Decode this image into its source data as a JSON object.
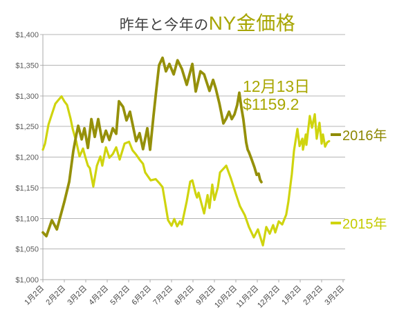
{
  "title": {
    "prefix": "昨年と今年の",
    "main": "NY金価格"
  },
  "colors": {
    "accent_title": "#a7a500",
    "annotation": "#a9a702",
    "series_2016": "#95900a",
    "series_2015": "#cfd40e",
    "grid": "#b5b5b5",
    "axis": "#a8a8a8",
    "y_tick_label": "#595959",
    "x_tick_label": "#454545",
    "title_gray": "#3f3f3f"
  },
  "chart_data": {
    "type": "line",
    "title": "昨年と今年のNY金価格",
    "legend_position": "right",
    "grid": "horizontal",
    "annotation": {
      "date": "12月13日",
      "value": "$1159.2"
    },
    "x_axis": {
      "tick_labels": [
        "1月2日",
        "2月2日",
        "3月2日",
        "4月2日",
        "5月2日",
        "6月2日",
        "7月2日",
        "8月2日",
        "9月2日",
        "10月2日",
        "11月2日",
        "12月2日",
        "1月2日",
        "2月2日",
        "3月2日"
      ],
      "label_rotation_deg": -45
    },
    "y_axis": {
      "min": 1000,
      "max": 1400,
      "tick_interval": 50,
      "tick_labels": [
        "$1,000",
        "$1,050",
        "$1,100",
        "$1,150",
        "$1,200",
        "$1,250",
        "$1,300",
        "$1,350",
        "$1,400"
      ]
    },
    "series": [
      {
        "name": "2016年",
        "color": "#95900a",
        "points": [
          [
            0,
            1077
          ],
          [
            0.16,
            1071
          ],
          [
            0.42,
            1097
          ],
          [
            0.65,
            1082
          ],
          [
            1.0,
            1127
          ],
          [
            1.23,
            1160
          ],
          [
            1.42,
            1210
          ],
          [
            1.55,
            1235
          ],
          [
            1.65,
            1251
          ],
          [
            1.81,
            1229
          ],
          [
            1.94,
            1247
          ],
          [
            2.1,
            1215
          ],
          [
            2.26,
            1262
          ],
          [
            2.42,
            1233
          ],
          [
            2.58,
            1262
          ],
          [
            2.77,
            1225
          ],
          [
            2.94,
            1243
          ],
          [
            3.1,
            1228
          ],
          [
            3.26,
            1247
          ],
          [
            3.42,
            1238
          ],
          [
            3.55,
            1291
          ],
          [
            3.74,
            1282
          ],
          [
            3.9,
            1260
          ],
          [
            4.06,
            1274
          ],
          [
            4.35,
            1226
          ],
          [
            4.51,
            1239
          ],
          [
            4.67,
            1213
          ],
          [
            4.87,
            1247
          ],
          [
            5.0,
            1212
          ],
          [
            5.16,
            1268
          ],
          [
            5.29,
            1310
          ],
          [
            5.42,
            1350
          ],
          [
            5.58,
            1362
          ],
          [
            5.74,
            1340
          ],
          [
            5.9,
            1352
          ],
          [
            6.1,
            1335
          ],
          [
            6.28,
            1358
          ],
          [
            6.48,
            1344
          ],
          [
            6.71,
            1318
          ],
          [
            6.97,
            1352
          ],
          [
            7.13,
            1307
          ],
          [
            7.35,
            1340
          ],
          [
            7.52,
            1335
          ],
          [
            7.77,
            1308
          ],
          [
            7.94,
            1326
          ],
          [
            8.06,
            1312
          ],
          [
            8.23,
            1288
          ],
          [
            8.42,
            1255
          ],
          [
            8.55,
            1263
          ],
          [
            8.68,
            1274
          ],
          [
            8.81,
            1262
          ],
          [
            8.94,
            1270
          ],
          [
            9.06,
            1285
          ],
          [
            9.16,
            1305
          ],
          [
            9.26,
            1280
          ],
          [
            9.35,
            1262
          ],
          [
            9.48,
            1224
          ],
          [
            9.55,
            1212
          ],
          [
            9.61,
            1208
          ],
          [
            9.74,
            1196
          ],
          [
            9.87,
            1183
          ],
          [
            9.97,
            1171
          ],
          [
            10.06,
            1173
          ],
          [
            10.13,
            1163
          ],
          [
            10.19,
            1159.2
          ]
        ]
      },
      {
        "name": "2015年",
        "color": "#cfd40e",
        "points": [
          [
            0,
            1212
          ],
          [
            0.1,
            1222
          ],
          [
            0.26,
            1253
          ],
          [
            0.42,
            1270
          ],
          [
            0.58,
            1287
          ],
          [
            0.72,
            1293
          ],
          [
            0.87,
            1299
          ],
          [
            1.0,
            1291
          ],
          [
            1.13,
            1285
          ],
          [
            1.29,
            1263
          ],
          [
            1.39,
            1246
          ],
          [
            1.55,
            1226
          ],
          [
            1.71,
            1201
          ],
          [
            1.87,
            1214
          ],
          [
            1.97,
            1201
          ],
          [
            2.1,
            1186
          ],
          [
            2.19,
            1182
          ],
          [
            2.35,
            1152
          ],
          [
            2.52,
            1186
          ],
          [
            2.68,
            1201
          ],
          [
            2.77,
            1186
          ],
          [
            2.94,
            1216
          ],
          [
            3.1,
            1199
          ],
          [
            3.26,
            1205
          ],
          [
            3.42,
            1216
          ],
          [
            3.58,
            1196
          ],
          [
            3.81,
            1222
          ],
          [
            4.02,
            1225
          ],
          [
            4.18,
            1211
          ],
          [
            4.35,
            1204
          ],
          [
            4.51,
            1196
          ],
          [
            4.67,
            1189
          ],
          [
            4.77,
            1175
          ],
          [
            5.03,
            1162
          ],
          [
            5.26,
            1164
          ],
          [
            5.42,
            1158
          ],
          [
            5.58,
            1151
          ],
          [
            5.84,
            1097
          ],
          [
            6.0,
            1088
          ],
          [
            6.13,
            1099
          ],
          [
            6.26,
            1087
          ],
          [
            6.39,
            1095
          ],
          [
            6.48,
            1090
          ],
          [
            6.71,
            1128
          ],
          [
            6.87,
            1160
          ],
          [
            6.97,
            1162
          ],
          [
            7.13,
            1140
          ],
          [
            7.19,
            1134
          ],
          [
            7.26,
            1142
          ],
          [
            7.52,
            1108
          ],
          [
            7.68,
            1138
          ],
          [
            7.77,
            1117
          ],
          [
            7.9,
            1155
          ],
          [
            8.0,
            1130
          ],
          [
            8.16,
            1151
          ],
          [
            8.26,
            1175
          ],
          [
            8.55,
            1186
          ],
          [
            8.77,
            1165
          ],
          [
            9.0,
            1140
          ],
          [
            9.19,
            1120
          ],
          [
            9.42,
            1105
          ],
          [
            9.61,
            1086
          ],
          [
            9.84,
            1069
          ],
          [
            10.03,
            1082
          ],
          [
            10.26,
            1056
          ],
          [
            10.42,
            1086
          ],
          [
            10.58,
            1075
          ],
          [
            10.74,
            1089
          ],
          [
            10.84,
            1077
          ],
          [
            11.0,
            1095
          ],
          [
            11.16,
            1090
          ],
          [
            11.35,
            1106
          ],
          [
            11.45,
            1127
          ],
          [
            11.61,
            1172
          ],
          [
            11.71,
            1210
          ],
          [
            11.87,
            1246
          ],
          [
            11.97,
            1218
          ],
          [
            12.1,
            1230
          ],
          [
            12.13,
            1212
          ],
          [
            12.26,
            1237
          ],
          [
            12.29,
            1220
          ],
          [
            12.45,
            1267
          ],
          [
            12.55,
            1248
          ],
          [
            12.68,
            1270
          ],
          [
            12.77,
            1230
          ],
          [
            12.9,
            1256
          ],
          [
            13.0,
            1222
          ],
          [
            13.06,
            1237
          ],
          [
            13.16,
            1217
          ],
          [
            13.26,
            1224
          ],
          [
            13.35,
            1226
          ]
        ]
      }
    ]
  }
}
